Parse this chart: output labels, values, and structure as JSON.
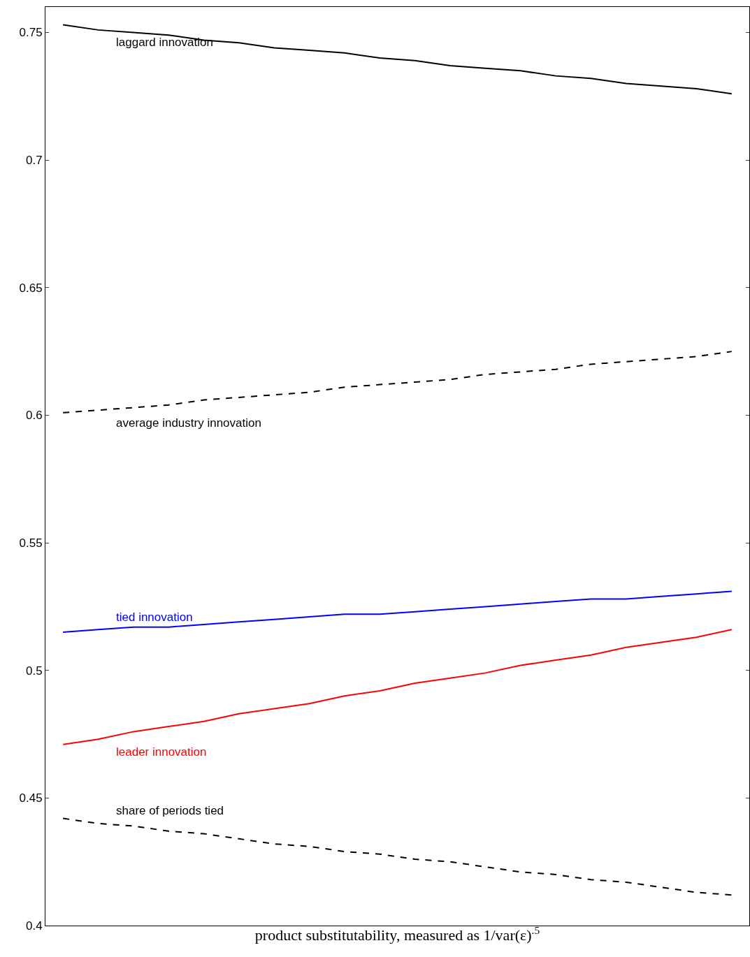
{
  "chart_data": {
    "type": "line",
    "xlabel": "product substitutability, measured as 1/var(ε)$^{.5}$",
    "categories": [
      null,
      null,
      null,
      null,
      null,
      null,
      null,
      null,
      null,
      null,
      null,
      null,
      null,
      null,
      null,
      null,
      null,
      null,
      null,
      null
    ],
    "series": [
      {
        "name": "laggard innovation",
        "color": "#000000",
        "line_style": "solid",
        "values": [
          0.753,
          0.751,
          0.75,
          0.749,
          0.747,
          0.746,
          0.744,
          0.743,
          0.742,
          0.74,
          0.739,
          0.737,
          0.736,
          0.735,
          0.733,
          0.732,
          0.73,
          0.729,
          0.728,
          0.726
        ]
      },
      {
        "name": "average industry innovation",
        "color": "#000000",
        "line_style": "dashed",
        "values": [
          0.601,
          0.602,
          0.603,
          0.604,
          0.606,
          0.607,
          0.608,
          0.609,
          0.611,
          0.612,
          0.613,
          0.614,
          0.616,
          0.617,
          0.618,
          0.62,
          0.621,
          0.622,
          0.623,
          0.625
        ]
      },
      {
        "name": "tied innovation",
        "color": "#0000ff",
        "line_style": "solid",
        "values": [
          0.515,
          0.516,
          0.517,
          0.517,
          0.518,
          0.519,
          0.52,
          0.521,
          0.522,
          0.522,
          0.523,
          0.524,
          0.525,
          0.526,
          0.527,
          0.528,
          0.528,
          0.529,
          0.53,
          0.531
        ]
      },
      {
        "name": "leader innovation",
        "color": "#ff0000",
        "line_style": "solid",
        "values": [
          0.471,
          0.473,
          0.476,
          0.478,
          0.48,
          0.483,
          0.485,
          0.487,
          0.49,
          0.492,
          0.495,
          0.497,
          0.499,
          0.502,
          0.504,
          0.506,
          0.509,
          0.511,
          0.513,
          0.516
        ]
      },
      {
        "name": "share of periods tied",
        "color": "#000000",
        "line_style": "dashed",
        "values": [
          0.442,
          0.44,
          0.439,
          0.437,
          0.436,
          0.434,
          0.432,
          0.431,
          0.429,
          0.428,
          0.426,
          0.425,
          0.423,
          0.421,
          0.42,
          0.418,
          0.417,
          0.415,
          0.413,
          0.412
        ]
      }
    ],
    "ylim": [
      0.4,
      0.76
    ],
    "yticks": [
      0.4,
      0.45,
      0.5,
      0.55,
      0.6,
      0.65,
      0.7,
      0.75
    ],
    "grid": false,
    "legend": false,
    "marker": "none",
    "tick_labels": "y"
  }
}
